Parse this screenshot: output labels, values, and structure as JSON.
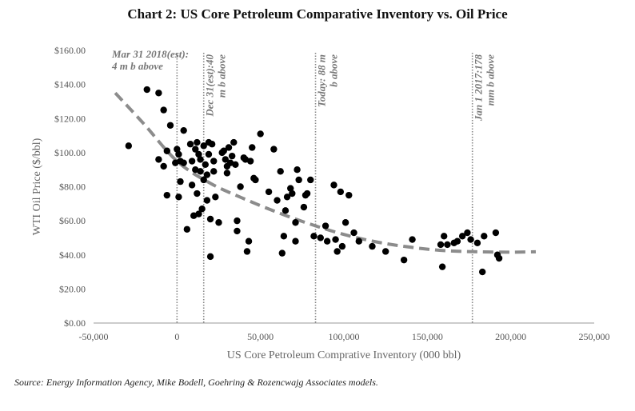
{
  "chart_title": "Chart 2: US Core Petroleum Comparative Inventory vs. Oil Price",
  "source": "Source: Energy Information Agency, Mike Bodell, Goehring & Rozencwajg Associates models.",
  "chart_data": {
    "type": "scatter",
    "title": "Chart 2: US Core Petroleum Comparative Inventory vs. Oil Price",
    "xlabel": "US Core Petroleum Comprative Inventory (000 bbl)",
    "ylabel": "WTI Oil Price ($/bbl)",
    "xlim": [
      -50000,
      250000
    ],
    "ylim": [
      0,
      160
    ],
    "xticks": [
      -50000,
      0,
      50000,
      100000,
      150000,
      200000,
      250000
    ],
    "xtick_labels": [
      "-50,000",
      "0",
      "50,000",
      "100,000",
      "150,000",
      "200,000",
      "250,000"
    ],
    "yticks": [
      0,
      20,
      40,
      60,
      80,
      100,
      120,
      140,
      160
    ],
    "ytick_labels": [
      "$0.00",
      "$20.00",
      "$40.00",
      "$60.00",
      "$80.00",
      "$100.00",
      "$120.00",
      "$140.00",
      "$160.00"
    ],
    "grid": false,
    "trend_line": {
      "style": "dashed",
      "color": "#8c8c8c",
      "points": [
        [
          -37000,
          135
        ],
        [
          -20000,
          117
        ],
        [
          0,
          95
        ],
        [
          20000,
          82
        ],
        [
          40000,
          73
        ],
        [
          60000,
          65
        ],
        [
          80000,
          58
        ],
        [
          100000,
          52
        ],
        [
          120000,
          47.5
        ],
        [
          140000,
          44.5
        ],
        [
          160000,
          42.5
        ],
        [
          180000,
          41.8
        ],
        [
          200000,
          41.6
        ],
        [
          215000,
          41.8
        ]
      ]
    },
    "vertical_markers": [
      {
        "x": 0,
        "label": "Mar 31 2018(est): 4 m b above",
        "lines": [
          "Mar 31 2018(est):",
          "4 m b above"
        ],
        "orientation": "horizontal"
      },
      {
        "x": 16000,
        "label": "Dec 31(est):40 m b above",
        "lines": [
          "Dec 31(est):40",
          "m b above"
        ],
        "orientation": "vertical"
      },
      {
        "x": 83000,
        "label": "Today: 88 m b above",
        "lines": [
          "Today: 88 m",
          "b above"
        ],
        "orientation": "vertical"
      },
      {
        "x": 177000,
        "label": "Jan 1 2017:178 mm b above",
        "lines": [
          "Jan 1 2017:178",
          "mm b above"
        ],
        "orientation": "vertical"
      }
    ],
    "points": [
      [
        -29000,
        104
      ],
      [
        -18000,
        137
      ],
      [
        -11000,
        135
      ],
      [
        -11000,
        96
      ],
      [
        -8000,
        125
      ],
      [
        -8000,
        92
      ],
      [
        -6000,
        75
      ],
      [
        -6000,
        101
      ],
      [
        -4000,
        116
      ],
      [
        -1000,
        94
      ],
      [
        0,
        102
      ],
      [
        1000,
        99
      ],
      [
        1000,
        74
      ],
      [
        2000,
        83
      ],
      [
        2000,
        95
      ],
      [
        4000,
        113
      ],
      [
        4000,
        94
      ],
      [
        6000,
        55
      ],
      [
        8000,
        105
      ],
      [
        9000,
        95
      ],
      [
        9000,
        81
      ],
      [
        10000,
        63
      ],
      [
        11000,
        102
      ],
      [
        11000,
        90
      ],
      [
        12000,
        106
      ],
      [
        12000,
        76
      ],
      [
        13000,
        99
      ],
      [
        13000,
        64
      ],
      [
        14000,
        96
      ],
      [
        14000,
        89
      ],
      [
        15000,
        67
      ],
      [
        16000,
        104
      ],
      [
        16000,
        84
      ],
      [
        17000,
        93
      ],
      [
        18000,
        87
      ],
      [
        18000,
        72
      ],
      [
        19000,
        106
      ],
      [
        19000,
        99
      ],
      [
        20000,
        61
      ],
      [
        20000,
        39
      ],
      [
        21000,
        105
      ],
      [
        22000,
        95
      ],
      [
        22000,
        89
      ],
      [
        23000,
        74
      ],
      [
        25000,
        59
      ],
      [
        27000,
        100
      ],
      [
        28000,
        101
      ],
      [
        29000,
        96
      ],
      [
        30000,
        92
      ],
      [
        30000,
        88
      ],
      [
        31000,
        103
      ],
      [
        32000,
        94
      ],
      [
        33000,
        98
      ],
      [
        34000,
        106
      ],
      [
        35000,
        93
      ],
      [
        36000,
        54
      ],
      [
        36000,
        60
      ],
      [
        38000,
        80
      ],
      [
        40000,
        97
      ],
      [
        41000,
        96
      ],
      [
        42000,
        42
      ],
      [
        43000,
        48
      ],
      [
        44000,
        95
      ],
      [
        45000,
        103
      ],
      [
        46000,
        85
      ],
      [
        47000,
        84
      ],
      [
        50000,
        111
      ],
      [
        55000,
        77
      ],
      [
        58000,
        102
      ],
      [
        60000,
        72
      ],
      [
        62000,
        89
      ],
      [
        63000,
        41
      ],
      [
        64000,
        51
      ],
      [
        65000,
        66
      ],
      [
        66000,
        74
      ],
      [
        68000,
        79
      ],
      [
        69000,
        76
      ],
      [
        71000,
        48
      ],
      [
        71000,
        59
      ],
      [
        72000,
        90
      ],
      [
        73000,
        84
      ],
      [
        76000,
        68
      ],
      [
        77000,
        75
      ],
      [
        78000,
        76
      ],
      [
        80000,
        84
      ],
      [
        82000,
        51
      ],
      [
        86000,
        50
      ],
      [
        89000,
        57
      ],
      [
        90000,
        48
      ],
      [
        94000,
        81
      ],
      [
        95000,
        49
      ],
      [
        96000,
        42
      ],
      [
        98000,
        77
      ],
      [
        99000,
        45
      ],
      [
        101000,
        59
      ],
      [
        103000,
        75
      ],
      [
        106000,
        53
      ],
      [
        109000,
        48
      ],
      [
        117000,
        45
      ],
      [
        125000,
        42
      ],
      [
        136000,
        37
      ],
      [
        141000,
        49
      ],
      [
        158000,
        46
      ],
      [
        159000,
        33
      ],
      [
        160000,
        51
      ],
      [
        162000,
        46
      ],
      [
        166000,
        47
      ],
      [
        168000,
        48
      ],
      [
        171000,
        51
      ],
      [
        174000,
        53
      ],
      [
        176000,
        49
      ],
      [
        180000,
        47
      ],
      [
        183000,
        30
      ],
      [
        184000,
        51
      ],
      [
        191000,
        53
      ],
      [
        192000,
        40
      ],
      [
        193000,
        38
      ]
    ]
  }
}
